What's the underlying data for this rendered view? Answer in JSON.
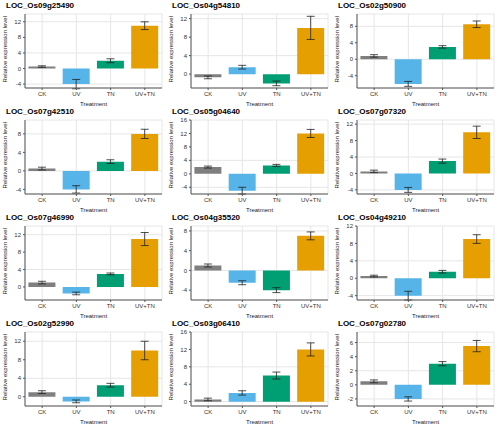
{
  "chart_data": [
    {
      "type": "bar",
      "title": "LOC_Os09g25490",
      "categories": [
        "CK",
        "UV",
        "TN",
        "UV+TN"
      ],
      "values": [
        0.5,
        -4,
        2,
        11
      ],
      "errors": [
        0.2,
        1.2,
        0.5,
        1
      ],
      "colors": [
        "#7f7f7f",
        "#56b4e9",
        "#009e73",
        "#e69f00"
      ],
      "ylim": [
        -5,
        14
      ],
      "yticks": [
        -4,
        0,
        4,
        8,
        12
      ],
      "xlabel": "Treatment",
      "ylabel": "Relative expression level",
      "grid": true
    },
    {
      "type": "bar",
      "title": "LOC_Os04g54810",
      "categories": [
        "CK",
        "UV",
        "TN",
        "UV+TN"
      ],
      "values": [
        -0.7,
        1.5,
        -2,
        10
      ],
      "errors": [
        0.3,
        0.4,
        0.5,
        2.5
      ],
      "colors": [
        "#7f7f7f",
        "#56b4e9",
        "#009e73",
        "#e69f00"
      ],
      "ylim": [
        -3,
        13
      ],
      "yticks": [
        0,
        4,
        8,
        12
      ],
      "xlabel": "Treatment",
      "ylabel": "Relative expression level",
      "grid": true
    },
    {
      "type": "bar",
      "title": "LOC_Os02g50900",
      "categories": [
        "CK",
        "UV",
        "TN",
        "UV+TN"
      ],
      "values": [
        0.8,
        -6,
        3,
        8.5
      ],
      "errors": [
        0.3,
        0.6,
        0.3,
        0.8
      ],
      "colors": [
        "#7f7f7f",
        "#56b4e9",
        "#009e73",
        "#e69f00"
      ],
      "ylim": [
        -7,
        11
      ],
      "yticks": [
        -4,
        0,
        4,
        8
      ],
      "xlabel": "Treatment",
      "ylabel": "Relative expression level",
      "grid": true
    },
    {
      "type": "bar",
      "title": "LOC_Os07g42510",
      "categories": [
        "CK",
        "UV",
        "TN",
        "UV+TN"
      ],
      "values": [
        0.5,
        -4,
        2,
        8
      ],
      "errors": [
        0.3,
        0.8,
        0.4,
        1
      ],
      "colors": [
        "#7f7f7f",
        "#56b4e9",
        "#009e73",
        "#e69f00"
      ],
      "ylim": [
        -5,
        11
      ],
      "yticks": [
        -4,
        0,
        4,
        8
      ],
      "xlabel": "Treatment",
      "ylabel": "Relative expression level",
      "grid": true
    },
    {
      "type": "bar",
      "title": "LOC_Os05g04640",
      "categories": [
        "CK",
        "UV",
        "TN",
        "UV+TN"
      ],
      "values": [
        2,
        -5,
        2.5,
        12
      ],
      "errors": [
        0.3,
        1,
        0.3,
        1.2
      ],
      "colors": [
        "#7f7f7f",
        "#56b4e9",
        "#009e73",
        "#e69f00"
      ],
      "ylim": [
        -6,
        16
      ],
      "yticks": [
        -4,
        0,
        4,
        8,
        12,
        16
      ],
      "xlabel": "Treatment",
      "ylabel": "Relative expression level",
      "grid": true
    },
    {
      "type": "bar",
      "title": "LOC_Os07g07320",
      "categories": [
        "CK",
        "UV",
        "TN",
        "UV+TN"
      ],
      "values": [
        0.5,
        -4,
        3,
        10
      ],
      "errors": [
        0.3,
        0.6,
        0.5,
        1.5
      ],
      "colors": [
        "#7f7f7f",
        "#56b4e9",
        "#009e73",
        "#e69f00"
      ],
      "ylim": [
        -5,
        13
      ],
      "yticks": [
        -4,
        0,
        4,
        8,
        12
      ],
      "xlabel": "Treatment",
      "ylabel": "Relative expression level",
      "grid": true
    },
    {
      "type": "bar",
      "title": "LOC_Os07g46990",
      "categories": [
        "CK",
        "UV",
        "TN",
        "UV+TN"
      ],
      "values": [
        1,
        -1.5,
        3,
        11
      ],
      "errors": [
        0.3,
        0.3,
        0.2,
        1.5
      ],
      "colors": [
        "#7f7f7f",
        "#56b4e9",
        "#009e73",
        "#e69f00"
      ],
      "ylim": [
        -3,
        14
      ],
      "yticks": [
        0,
        4,
        8,
        12
      ],
      "xlabel": "Treatment",
      "ylabel": "Relative expression level",
      "grid": true
    },
    {
      "type": "bar",
      "title": "LOC_Os04g35520",
      "categories": [
        "CK",
        "UV",
        "TN",
        "UV+TN"
      ],
      "values": [
        1,
        -2.5,
        -4,
        7
      ],
      "errors": [
        0.3,
        0.4,
        0.5,
        0.8
      ],
      "colors": [
        "#7f7f7f",
        "#56b4e9",
        "#009e73",
        "#e69f00"
      ],
      "ylim": [
        -6,
        9
      ],
      "yticks": [
        -4,
        0,
        4,
        8
      ],
      "xlabel": "Treatment",
      "ylabel": "Relative expression level",
      "grid": true
    },
    {
      "type": "bar",
      "title": "LOC_Os04g49210",
      "categories": [
        "CK",
        "UV",
        "TN",
        "UV+TN"
      ],
      "values": [
        0.5,
        -4,
        1.5,
        9
      ],
      "errors": [
        0.2,
        1,
        0.3,
        1
      ],
      "colors": [
        "#7f7f7f",
        "#56b4e9",
        "#009e73",
        "#e69f00"
      ],
      "ylim": [
        -5,
        12
      ],
      "yticks": [
        -4,
        0,
        4,
        8,
        12
      ],
      "xlabel": "Treatment",
      "ylabel": "Relative expression level",
      "grid": true
    },
    {
      "type": "bar",
      "title": "LOC_Os02g52990",
      "categories": [
        "CK",
        "UV",
        "TN",
        "UV+TN"
      ],
      "values": [
        1,
        -1,
        2.5,
        10
      ],
      "errors": [
        0.3,
        0.3,
        0.4,
        2
      ],
      "colors": [
        "#7f7f7f",
        "#56b4e9",
        "#009e73",
        "#e69f00"
      ],
      "ylim": [
        -2,
        14
      ],
      "yticks": [
        0,
        4,
        8,
        12
      ],
      "xlabel": "Treatment",
      "ylabel": "Relative expression level",
      "grid": true
    },
    {
      "type": "bar",
      "title": "LOC_Os03g06410",
      "categories": [
        "CK",
        "UV",
        "TN",
        "UV+TN"
      ],
      "values": [
        0.5,
        2,
        6,
        12
      ],
      "errors": [
        0.3,
        0.5,
        0.8,
        1.5
      ],
      "colors": [
        "#7f7f7f",
        "#56b4e9",
        "#009e73",
        "#e69f00"
      ],
      "ylim": [
        -1,
        16
      ],
      "yticks": [
        0,
        4,
        8,
        12,
        16
      ],
      "xlabel": "Treatment",
      "ylabel": "Relative expression level",
      "grid": true
    },
    {
      "type": "bar",
      "title": "LOC_Os07g02780",
      "categories": [
        "CK",
        "UV",
        "TN",
        "UV+TN"
      ],
      "values": [
        0.5,
        -2,
        3,
        5.5
      ],
      "errors": [
        0.2,
        0.3,
        0.3,
        0.8
      ],
      "colors": [
        "#7f7f7f",
        "#56b4e9",
        "#009e73",
        "#e69f00"
      ],
      "ylim": [
        -3,
        7.5
      ],
      "yticks": [
        -2,
        0,
        2,
        4,
        6
      ],
      "xlabel": "Treatment",
      "ylabel": "Relative expression level",
      "grid": true
    }
  ]
}
